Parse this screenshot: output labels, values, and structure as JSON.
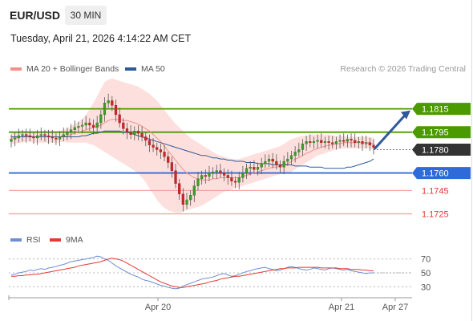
{
  "header": {
    "pair": "EUR/USD",
    "timeframe": "30 MIN",
    "datetime": "Tuesday, April 21, 2026 4:14:22 AM CET"
  },
  "legend": {
    "ma20_label": "MA 20 + Bollinger Bands",
    "ma50_label": "MA 50",
    "ma20_color": "#f4908a",
    "ma50_color": "#2e5a99",
    "credit": "Research © 2026 Trading Central"
  },
  "rsi_legend": {
    "rsi_label": "RSI",
    "ma_label": "9MA",
    "rsi_color": "#6f8fd0",
    "ma_color": "#e53935"
  },
  "chart_data": [
    {
      "type": "candlestick",
      "title": "EUR/USD 30 MIN",
      "ylim": [
        1.1715,
        1.1845
      ],
      "x_tick_labels": [
        "Apr 20",
        "Apr 21",
        "Apr 27"
      ],
      "closes": [
        1.1789,
        1.179,
        1.1792,
        1.1793,
        1.1792,
        1.1791,
        1.179,
        1.1792,
        1.1793,
        1.1792,
        1.1791,
        1.179,
        1.1789,
        1.1791,
        1.1793,
        1.1795,
        1.1797,
        1.1799,
        1.18,
        1.1801,
        1.1803,
        1.1801,
        1.1799,
        1.1803,
        1.181,
        1.182,
        1.1822,
        1.1818,
        1.181,
        1.1803,
        1.1798,
        1.1795,
        1.1793,
        1.1796,
        1.1794,
        1.1791,
        1.1788,
        1.1784,
        1.1782,
        1.178,
        1.1778,
        1.1774,
        1.1769,
        1.1762,
        1.1751,
        1.1742,
        1.1733,
        1.1737,
        1.1741,
        1.1749,
        1.1755,
        1.1758,
        1.1757,
        1.176,
        1.1761,
        1.1762,
        1.176,
        1.1758,
        1.1756,
        1.1753,
        1.1752,
        1.1756,
        1.176,
        1.1764,
        1.1765,
        1.1763,
        1.1765,
        1.1768,
        1.177,
        1.1772,
        1.177,
        1.1767,
        1.1765,
        1.177,
        1.1772,
        1.1775,
        1.1778,
        1.178,
        1.1785,
        1.1787,
        1.1786,
        1.1787,
        1.1788,
        1.1786,
        1.1787,
        1.1786,
        1.1785,
        1.1787,
        1.1788,
        1.1787,
        1.1789,
        1.1788,
        1.1786,
        1.1787,
        1.1785,
        1.1786,
        1.1784,
        1.1782
      ],
      "indicators": {
        "ma20": [
          1.179,
          1.179,
          1.1791,
          1.1791,
          1.1792,
          1.1792,
          1.1791,
          1.1791,
          1.1791,
          1.1791,
          1.1791,
          1.1791,
          1.1791,
          1.1791,
          1.1792,
          1.1792,
          1.1793,
          1.1794,
          1.1795,
          1.1796,
          1.1797,
          1.1798,
          1.1799,
          1.18,
          1.1801,
          1.1803,
          1.1805,
          1.1806,
          1.1806,
          1.1806,
          1.1805,
          1.1805,
          1.1804,
          1.1803,
          1.1802,
          1.18,
          1.1798,
          1.1796,
          1.1793,
          1.179,
          1.1787,
          1.1783,
          1.1779,
          1.1775,
          1.1771,
          1.1767,
          1.1763,
          1.176,
          1.1758,
          1.1756,
          1.1755,
          1.1754,
          1.1754,
          1.1754,
          1.1755,
          1.1755,
          1.1756,
          1.1756,
          1.1756,
          1.1756,
          1.1756,
          1.1756,
          1.1757,
          1.1758,
          1.1759,
          1.176,
          1.1761,
          1.1762,
          1.1763,
          1.1764,
          1.1765,
          1.1765,
          1.1766,
          1.1767,
          1.1768,
          1.177,
          1.1772,
          1.1773,
          1.1775,
          1.1777,
          1.1778,
          1.178,
          1.1781,
          1.1782,
          1.1783,
          1.1784,
          1.1784,
          1.1785,
          1.1785,
          1.1786,
          1.1786,
          1.1786,
          1.1786,
          1.1786,
          1.1786,
          1.1786,
          1.1786,
          1.1785
        ],
        "bollinger_upper": [
          1.1795,
          1.1795,
          1.1796,
          1.1796,
          1.1796,
          1.1796,
          1.1796,
          1.1796,
          1.1796,
          1.1796,
          1.1796,
          1.1796,
          1.1796,
          1.1796,
          1.1797,
          1.1798,
          1.18,
          1.1802,
          1.1804,
          1.1806,
          1.181,
          1.1815,
          1.182,
          1.1826,
          1.1832,
          1.1838,
          1.184,
          1.1841,
          1.184,
          1.1839,
          1.1838,
          1.1837,
          1.1836,
          1.1835,
          1.1834,
          1.1832,
          1.183,
          1.1828,
          1.1825,
          1.1822,
          1.1818,
          1.1814,
          1.181,
          1.1806,
          1.1802,
          1.1799,
          1.1796,
          1.1793,
          1.179,
          1.1788,
          1.1786,
          1.1784,
          1.1782,
          1.178,
          1.1778,
          1.1776,
          1.1775,
          1.1774,
          1.1773,
          1.1772,
          1.1772,
          1.1772,
          1.1773,
          1.1774,
          1.1775,
          1.1776,
          1.1777,
          1.1778,
          1.1779,
          1.178,
          1.1781,
          1.1782,
          1.1783,
          1.1785,
          1.1787,
          1.1789,
          1.179,
          1.1791,
          1.1792,
          1.1792,
          1.1793,
          1.1793,
          1.1793,
          1.1793,
          1.1793,
          1.1793,
          1.1792,
          1.1792,
          1.1792,
          1.1792,
          1.1791,
          1.1791,
          1.1791,
          1.1791,
          1.1791,
          1.1791,
          1.1791,
          1.179
        ],
        "bollinger_lower": [
          1.1785,
          1.1785,
          1.1786,
          1.1786,
          1.1787,
          1.1787,
          1.1786,
          1.1786,
          1.1786,
          1.1786,
          1.1786,
          1.1786,
          1.1786,
          1.1786,
          1.1787,
          1.1786,
          1.1786,
          1.1786,
          1.1786,
          1.1786,
          1.1786,
          1.1785,
          1.1784,
          1.1782,
          1.178,
          1.1778,
          1.1776,
          1.1774,
          1.1772,
          1.177,
          1.1768,
          1.1766,
          1.1764,
          1.1762,
          1.176,
          1.1756,
          1.1752,
          1.1747,
          1.1742,
          1.1737,
          1.1733,
          1.173,
          1.1728,
          1.1727,
          1.1726,
          1.1726,
          1.1727,
          1.1728,
          1.1729,
          1.173,
          1.1731,
          1.1732,
          1.1734,
          1.1736,
          1.1738,
          1.174,
          1.1742,
          1.1744,
          1.1745,
          1.1746,
          1.1747,
          1.1748,
          1.1749,
          1.175,
          1.1751,
          1.1752,
          1.1753,
          1.1754,
          1.1755,
          1.1756,
          1.1757,
          1.1758,
          1.1759,
          1.1759,
          1.176,
          1.1761,
          1.1763,
          1.1765,
          1.1767,
          1.1769,
          1.1771,
          1.1773,
          1.1775,
          1.1776,
          1.1777,
          1.1778,
          1.1779,
          1.178,
          1.1781,
          1.1781,
          1.1781,
          1.1781,
          1.1781,
          1.1781,
          1.1781,
          1.1781,
          1.1781,
          1.178
        ],
        "ma50": [
          1.1791,
          1.1791,
          1.1791,
          1.1791,
          1.1791,
          1.1791,
          1.1791,
          1.1791,
          1.1791,
          1.1791,
          1.1791,
          1.1791,
          1.1791,
          1.1791,
          1.1791,
          1.1791,
          1.1791,
          1.1791,
          1.1791,
          1.1792,
          1.1792,
          1.1793,
          1.1794,
          1.1794,
          1.1795,
          1.1796,
          1.1796,
          1.1796,
          1.1796,
          1.1796,
          1.1795,
          1.1795,
          1.1794,
          1.1793,
          1.1792,
          1.1791,
          1.179,
          1.1789,
          1.1788,
          1.1787,
          1.1786,
          1.1785,
          1.1784,
          1.1783,
          1.1782,
          1.1781,
          1.178,
          1.1779,
          1.1778,
          1.1777,
          1.1776,
          1.1775,
          1.1775,
          1.1774,
          1.1773,
          1.1773,
          1.1772,
          1.1772,
          1.1771,
          1.1771,
          1.177,
          1.177,
          1.177,
          1.1769,
          1.1769,
          1.1769,
          1.1768,
          1.1768,
          1.1768,
          1.1768,
          1.1767,
          1.1767,
          1.1767,
          1.1767,
          1.1767,
          1.1767,
          1.1766,
          1.1766,
          1.1766,
          1.1766,
          1.1765,
          1.1765,
          1.1765,
          1.1765,
          1.1764,
          1.1764,
          1.1764,
          1.1764,
          1.1764,
          1.1764,
          1.1765,
          1.1765,
          1.1766,
          1.1767,
          1.1768,
          1.1769,
          1.177,
          1.1772
        ]
      },
      "levels": [
        {
          "value": 1.1815,
          "label": "1.1815",
          "kind": "resistance",
          "color": "#4a9a00"
        },
        {
          "value": 1.1795,
          "label": "1.1795",
          "kind": "resistance",
          "color": "#4a9a00"
        },
        {
          "value": 1.178,
          "label": "1.1780",
          "kind": "pivot",
          "color": "#333333"
        },
        {
          "value": 1.176,
          "label": "1.1760",
          "kind": "pivot",
          "color": "#2e6bd8"
        },
        {
          "value": 1.1745,
          "label": "1.1745",
          "kind": "support",
          "color": "#e53935"
        },
        {
          "value": 1.1725,
          "label": "1.1725",
          "kind": "support",
          "color": "#e53935"
        }
      ],
      "projection": {
        "from": 1.1782,
        "to": 1.1815,
        "direction": "up",
        "color": "#2e5a99"
      }
    },
    {
      "type": "line",
      "title": "RSI",
      "ylim": [
        20,
        80
      ],
      "y_tick_labels": [
        "70",
        "50",
        "30"
      ],
      "series": [
        {
          "name": "RSI",
          "values": [
            47,
            48,
            50,
            51,
            52,
            54,
            53,
            55,
            56,
            55,
            57,
            58,
            59,
            61,
            62,
            64,
            66,
            67,
            68,
            69,
            70,
            71,
            72,
            74,
            73,
            70,
            68,
            64,
            60,
            57,
            54,
            51,
            48,
            46,
            44,
            41,
            39,
            38,
            36,
            34,
            32,
            31,
            29,
            28,
            27,
            28,
            31,
            33,
            35,
            37,
            39,
            41,
            42,
            43,
            44,
            46,
            48,
            49,
            47,
            45,
            46,
            48,
            50,
            52,
            53,
            55,
            56,
            57,
            58,
            56,
            55,
            53,
            54,
            56,
            58,
            59,
            58,
            56,
            55,
            54,
            55,
            57,
            56,
            55,
            54,
            56,
            57,
            56,
            55,
            54,
            55,
            53,
            52,
            51,
            50,
            49,
            50,
            50
          ]
        },
        {
          "name": "9MA",
          "values": [
            45,
            45,
            46,
            46,
            47,
            47,
            48,
            48,
            49,
            50,
            51,
            52,
            53,
            54,
            55,
            56,
            57,
            58,
            60,
            61,
            62,
            63,
            64,
            65,
            66,
            68,
            70,
            71,
            70,
            69,
            67,
            64,
            61,
            58,
            55,
            52,
            49,
            46,
            43,
            40,
            37,
            35,
            33,
            31,
            30,
            29,
            29,
            30,
            31,
            32,
            33,
            34,
            35,
            37,
            38,
            39,
            41,
            42,
            43,
            44,
            45,
            45,
            46,
            47,
            48,
            49,
            50,
            51,
            52,
            53,
            54,
            55,
            56,
            56,
            57,
            57,
            57,
            58,
            58,
            58,
            58,
            58,
            58,
            57,
            57,
            57,
            57,
            57,
            56,
            56,
            56,
            55,
            55,
            55,
            54,
            54,
            53,
            53
          ]
        }
      ]
    }
  ]
}
